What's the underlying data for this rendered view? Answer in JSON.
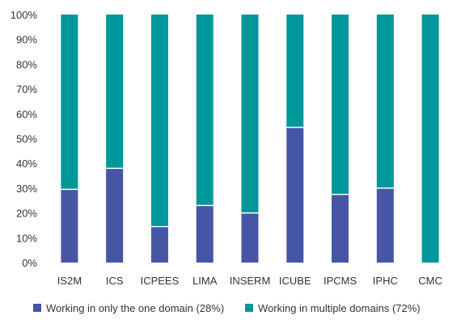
{
  "chart_data": {
    "type": "bar",
    "stacked": true,
    "percent": true,
    "categories": [
      "IS2M",
      "ICS",
      "ICPEES",
      "LIMA",
      "INSERM",
      "ICUBE",
      "IPCMS",
      "IPHC",
      "CMC"
    ],
    "series": [
      {
        "name": "Working in only the one domain (28%)",
        "color": "#4655a4",
        "values": [
          29.5,
          38,
          14.5,
          23,
          20,
          54.5,
          27.5,
          30,
          0
        ]
      },
      {
        "name": "Working in multiple domains (72%)",
        "color": "#00979a",
        "values": [
          70.5,
          62,
          85.5,
          77,
          80,
          45.5,
          72.5,
          70,
          100
        ]
      }
    ],
    "ylim": [
      0,
      100
    ],
    "yticks": [
      "0%",
      "10%",
      "20%",
      "30%",
      "40%",
      "50%",
      "60%",
      "70%",
      "80%",
      "90%",
      "100%"
    ],
    "title": "",
    "xlabel": "",
    "ylabel": "",
    "legend": "bottom",
    "grid": false
  }
}
